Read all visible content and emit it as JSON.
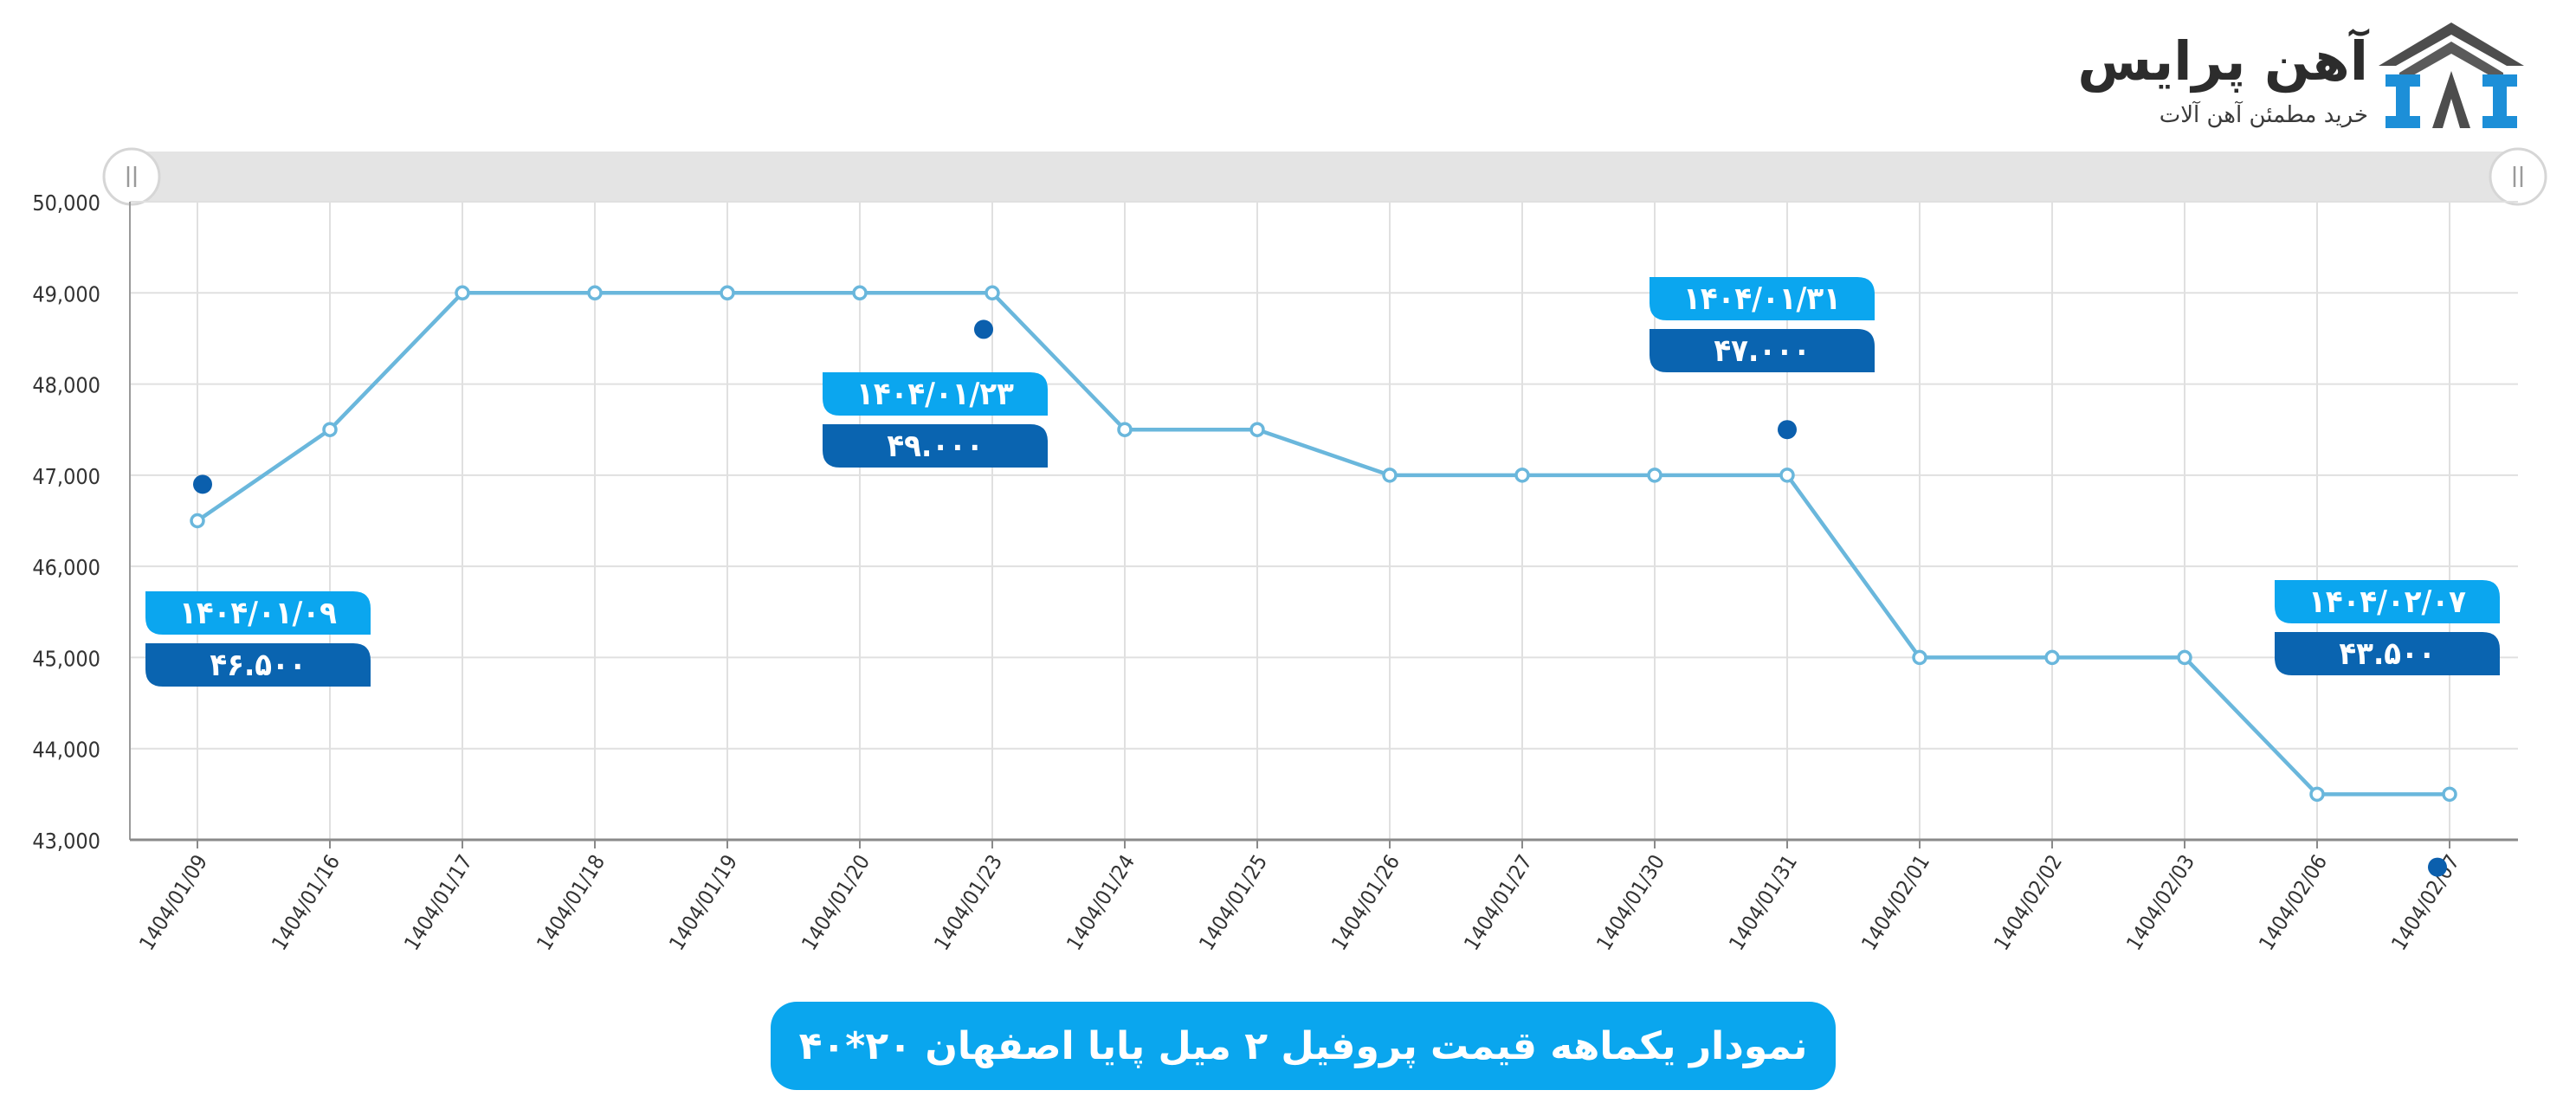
{
  "brand": {
    "name": "آهن پرایس",
    "tagline": "خرید مطمئن آهن آلات"
  },
  "chart_title": "نمودار یکماهه قیمت پروفیل ۲ میل پایا اصفهان ۲۰*۴۰",
  "colors": {
    "line": "#6ab7dc",
    "grid": "#e0e0e0",
    "date_badge": "#0ba6ef",
    "price_badge": "#0a64b0",
    "marker_dot": "#0b5fad",
    "title_pill": "#0aa6ee",
    "scrollbar": "#e3e3e3"
  },
  "chart_data": {
    "type": "line",
    "x": [
      "1404/01/09",
      "1404/01/16",
      "1404/01/17",
      "1404/01/18",
      "1404/01/19",
      "1404/01/20",
      "1404/01/23",
      "1404/01/24",
      "1404/01/25",
      "1404/01/26",
      "1404/01/27",
      "1404/01/30",
      "1404/01/31",
      "1404/02/01",
      "1404/02/02",
      "1404/02/03",
      "1404/02/06",
      "1404/02/07"
    ],
    "series": [
      {
        "values": [
          46500,
          47500,
          49000,
          49000,
          49000,
          49000,
          49000,
          47500,
          47500,
          47000,
          47000,
          47000,
          47000,
          45000,
          45000,
          45000,
          43500,
          43500
        ]
      }
    ],
    "ylim": [
      43000,
      50000
    ],
    "yticks": [
      43000,
      44000,
      45000,
      46000,
      47000,
      48000,
      49000,
      50000
    ],
    "ytick_labels": [
      "43,000",
      "44,000",
      "45,000",
      "46,000",
      "47,000",
      "48,000",
      "49,000",
      "50,000"
    ],
    "grid": true,
    "annotations": [
      {
        "x": "1404/01/09",
        "date_label": "۱۴۰۴/۰۱/۰۹",
        "price_label": "۴۶.۵۰۰"
      },
      {
        "x": "1404/01/23",
        "date_label": "۱۴۰۴/۰۱/۲۳",
        "price_label": "۴۹.۰۰۰"
      },
      {
        "x": "1404/01/31",
        "date_label": "۱۴۰۴/۰۱/۳۱",
        "price_label": "۴۷.۰۰۰"
      },
      {
        "x": "1404/02/07",
        "date_label": "۱۴۰۴/۰۲/۰۷",
        "price_label": "۴۳.۵۰۰"
      }
    ]
  }
}
